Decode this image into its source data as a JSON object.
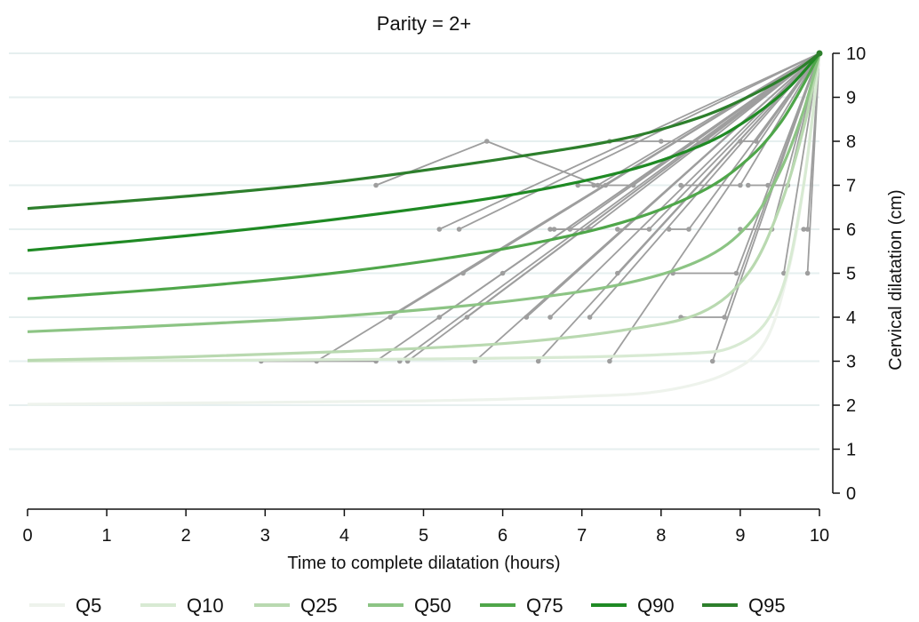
{
  "chart_data": {
    "type": "line",
    "title": "Parity = 2+",
    "xlabel": "Time to complete dilatation (hours)",
    "ylabel": "Cervical dilatation (cm)",
    "xlim": [
      0,
      10
    ],
    "ylim": [
      0,
      10
    ],
    "x_ticks": [
      "0",
      "1",
      "2",
      "3",
      "4",
      "5",
      "6",
      "7",
      "8",
      "9",
      "10"
    ],
    "y_ticks": [
      "0",
      "1",
      "2",
      "3",
      "4",
      "5",
      "6",
      "7",
      "8",
      "9",
      "10"
    ],
    "grid": "horizontal",
    "legend_position": "bottom",
    "quantile_curves": [
      {
        "name": "Q5",
        "color": "#eef3ec",
        "points": [
          [
            0,
            2.02
          ],
          [
            5,
            2.1
          ],
          [
            7,
            2.2
          ],
          [
            8,
            2.32
          ],
          [
            8.8,
            2.7
          ],
          [
            9.3,
            3.4
          ],
          [
            9.6,
            5
          ],
          [
            9.8,
            7
          ],
          [
            10,
            10
          ]
        ]
      },
      {
        "name": "Q10",
        "color": "#d8ead3",
        "points": [
          [
            0,
            3
          ],
          [
            5,
            3.05
          ],
          [
            8,
            3.15
          ],
          [
            9,
            3.4
          ],
          [
            9.5,
            4.5
          ],
          [
            9.8,
            7
          ],
          [
            10,
            10
          ]
        ]
      },
      {
        "name": "Q25",
        "color": "#b9d9b0",
        "points": [
          [
            0,
            3.02
          ],
          [
            2,
            3.1
          ],
          [
            4,
            3.22
          ],
          [
            6,
            3.4
          ],
          [
            7.5,
            3.7
          ],
          [
            8.5,
            4.1
          ],
          [
            9.1,
            5
          ],
          [
            9.5,
            6.5
          ],
          [
            9.8,
            8.3
          ],
          [
            10,
            10
          ]
        ]
      },
      {
        "name": "Q50",
        "color": "#8cc484",
        "points": [
          [
            0,
            3.67
          ],
          [
            2,
            3.83
          ],
          [
            4,
            4.03
          ],
          [
            6,
            4.35
          ],
          [
            7.5,
            4.75
          ],
          [
            8.5,
            5.3
          ],
          [
            9.1,
            6.1
          ],
          [
            9.5,
            7.3
          ],
          [
            9.8,
            8.7
          ],
          [
            10,
            10
          ]
        ]
      },
      {
        "name": "Q75",
        "color": "#4fa64a",
        "points": [
          [
            0,
            4.42
          ],
          [
            2,
            4.68
          ],
          [
            4,
            5.03
          ],
          [
            6,
            5.55
          ],
          [
            7.5,
            6.15
          ],
          [
            8.5,
            6.85
          ],
          [
            9.1,
            7.6
          ],
          [
            9.5,
            8.4
          ],
          [
            9.8,
            9.3
          ],
          [
            10,
            10
          ]
        ]
      },
      {
        "name": "Q90",
        "color": "#1f8a24",
        "points": [
          [
            0,
            5.52
          ],
          [
            2,
            5.85
          ],
          [
            4,
            6.25
          ],
          [
            6,
            6.75
          ],
          [
            7.5,
            7.3
          ],
          [
            8.5,
            7.9
          ],
          [
            9.1,
            8.5
          ],
          [
            9.6,
            9.2
          ],
          [
            10,
            10
          ]
        ]
      },
      {
        "name": "Q95",
        "color": "#2d7f2c",
        "points": [
          [
            0,
            6.47
          ],
          [
            2,
            6.75
          ],
          [
            4,
            7.1
          ],
          [
            6,
            7.6
          ],
          [
            7.5,
            8.05
          ],
          [
            8.5,
            8.55
          ],
          [
            9.2,
            9.1
          ],
          [
            9.7,
            9.6
          ],
          [
            10,
            10
          ]
        ]
      }
    ],
    "individual_trajectories": [
      [
        [
          4.4,
          7
        ],
        [
          5.8,
          8
        ],
        [
          7.2,
          7
        ],
        [
          10,
          10
        ]
      ],
      [
        [
          7.35,
          8
        ],
        [
          8.6,
          8
        ],
        [
          10,
          10
        ]
      ],
      [
        [
          8,
          8
        ],
        [
          8.55,
          8
        ],
        [
          10,
          10
        ]
      ],
      [
        [
          9.0,
          8
        ],
        [
          9.2,
          8
        ],
        [
          10,
          10
        ]
      ],
      [
        [
          6.95,
          7
        ],
        [
          7.3,
          7
        ],
        [
          10,
          10
        ]
      ],
      [
        [
          7.15,
          7
        ],
        [
          7.65,
          7
        ],
        [
          10,
          10
        ]
      ],
      [
        [
          8.25,
          7
        ],
        [
          9.0,
          7
        ],
        [
          10,
          10
        ]
      ],
      [
        [
          9.1,
          7
        ],
        [
          9.35,
          7
        ],
        [
          9.6,
          7
        ],
        [
          10,
          10
        ]
      ],
      [
        [
          5.2,
          6
        ],
        [
          10,
          10
        ]
      ],
      [
        [
          5.45,
          6
        ],
        [
          10,
          10
        ]
      ],
      [
        [
          6.6,
          6
        ],
        [
          7.1,
          6
        ],
        [
          10,
          10
        ]
      ],
      [
        [
          6.65,
          6
        ],
        [
          6.85,
          6
        ],
        [
          10,
          10
        ]
      ],
      [
        [
          7.45,
          6
        ],
        [
          7.85,
          6
        ],
        [
          10,
          10
        ]
      ],
      [
        [
          8.1,
          6
        ],
        [
          8.35,
          6
        ],
        [
          10,
          10
        ]
      ],
      [
        [
          9.0,
          6
        ],
        [
          9.4,
          6
        ],
        [
          10,
          10
        ]
      ],
      [
        [
          5.5,
          5
        ],
        [
          10,
          10
        ]
      ],
      [
        [
          6.0,
          5
        ],
        [
          10,
          10
        ]
      ],
      [
        [
          7.45,
          5
        ],
        [
          10,
          10
        ]
      ],
      [
        [
          8.15,
          5
        ],
        [
          8.95,
          5
        ],
        [
          10,
          10
        ]
      ],
      [
        [
          9.85,
          5
        ],
        [
          10,
          10
        ]
      ],
      [
        [
          4.58,
          4
        ],
        [
          10,
          10
        ]
      ],
      [
        [
          5.2,
          4
        ],
        [
          10,
          10
        ]
      ],
      [
        [
          5.55,
          4
        ],
        [
          10,
          10
        ]
      ],
      [
        [
          6.3,
          4
        ],
        [
          10,
          10
        ]
      ],
      [
        [
          6.6,
          4
        ],
        [
          10,
          10
        ]
      ],
      [
        [
          7.1,
          4
        ],
        [
          10,
          10
        ]
      ],
      [
        [
          8.25,
          4
        ],
        [
          8.8,
          4
        ],
        [
          10,
          10
        ]
      ],
      [
        [
          2.95,
          3
        ],
        [
          4.4,
          3
        ],
        [
          10,
          10
        ]
      ],
      [
        [
          3.65,
          3
        ],
        [
          10,
          10
        ]
      ],
      [
        [
          4.7,
          3
        ],
        [
          10,
          10
        ]
      ],
      [
        [
          4.8,
          3
        ],
        [
          10,
          10
        ]
      ],
      [
        [
          5.65,
          3
        ],
        [
          10,
          10
        ]
      ],
      [
        [
          6.45,
          3
        ],
        [
          10,
          10
        ]
      ],
      [
        [
          7.35,
          3
        ],
        [
          10,
          10
        ]
      ],
      [
        [
          8.65,
          3
        ],
        [
          10,
          10
        ]
      ],
      [
        [
          9.8,
          6
        ],
        [
          9.85,
          6
        ],
        [
          10,
          10
        ]
      ],
      [
        [
          9.55,
          5
        ],
        [
          10,
          10
        ]
      ]
    ],
    "legend": [
      "Q5",
      "Q10",
      "Q25",
      "Q50",
      "Q75",
      "Q90",
      "Q95"
    ]
  }
}
